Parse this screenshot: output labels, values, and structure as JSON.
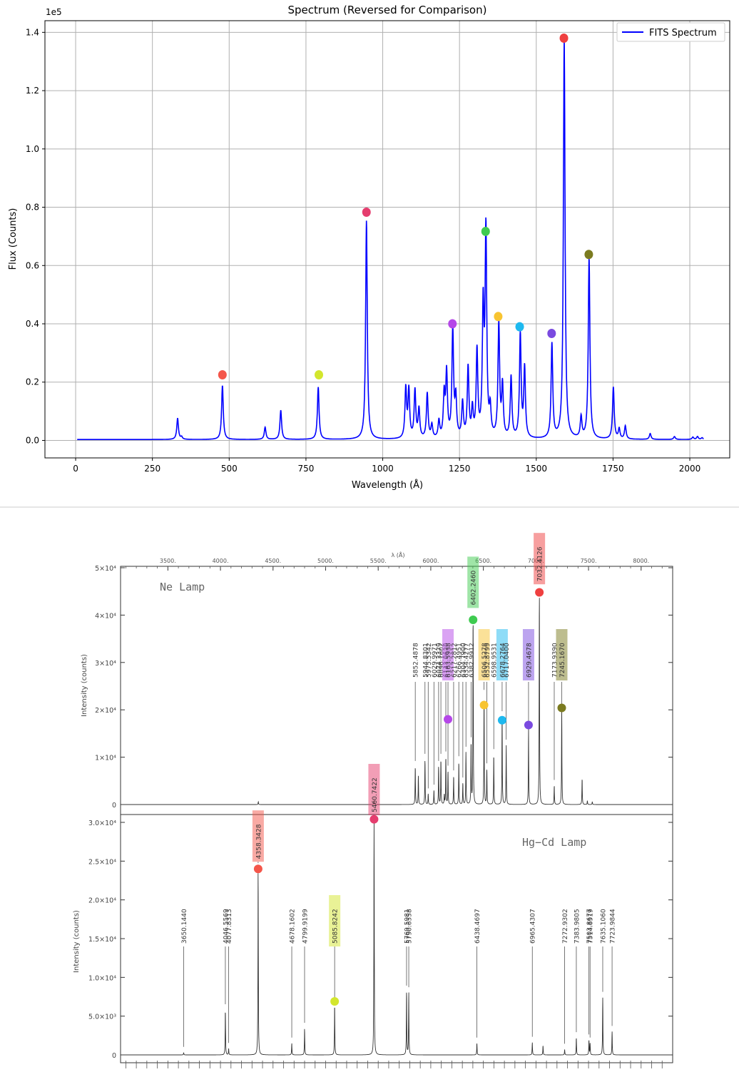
{
  "top_chart": {
    "title": "Spectrum (Reversed for Comparison)",
    "xlabel": "Wavelength (Å)",
    "ylabel": "Flux (Counts)",
    "y_multiplier": "1e5",
    "legend": "FITS Spectrum",
    "line_color": "#0000ff"
  },
  "bottom_chart": {
    "top_axis_title": "λ  (Å)",
    "ne_label": "Ne Lamp",
    "hg_label": "Hg−Cd Lamp",
    "ne_ylabel": "Intensity (counts)",
    "hg_ylabel": "Intensity (counts)"
  },
  "chart_data": [
    {
      "type": "line",
      "title": "Spectrum (Reversed for Comparison)",
      "xlabel": "Wavelength (Å)",
      "ylabel": "Flux (Counts)",
      "xlim": [
        -100,
        2130
      ],
      "ylim": [
        -0.06,
        1.44
      ],
      "y_scale_label": "1e5",
      "xticks": [
        0,
        250,
        500,
        750,
        1000,
        1250,
        1500,
        1750,
        2000
      ],
      "yticks": [
        0.0,
        0.2,
        0.4,
        0.6,
        0.8,
        1.0,
        1.2,
        1.4
      ],
      "ytick_labels": [
        "0.0",
        "0.2",
        "0.4",
        "0.6",
        "0.8",
        "1.0",
        "1.2",
        "1.4"
      ],
      "grid": true,
      "legend": [
        "FITS Spectrum"
      ],
      "legend_position": "top-right",
      "series": [
        {
          "name": "FITS Spectrum",
          "baseline": 0.003,
          "peaks": [
            [
              332,
              0.073
            ],
            [
              345,
              0.008
            ],
            [
              478,
              0.185
            ],
            [
              617,
              0.042
            ],
            [
              668,
              0.1
            ],
            [
              790,
              0.18
            ],
            [
              947,
              0.75
            ],
            [
              1075,
              0.17
            ],
            [
              1085,
              0.165
            ],
            [
              1105,
              0.165
            ],
            [
              1118,
              0.1
            ],
            [
              1145,
              0.155
            ],
            [
              1160,
              0.045
            ],
            [
              1183,
              0.058
            ],
            [
              1200,
              0.145
            ],
            [
              1208,
              0.22
            ],
            [
              1228,
              0.375
            ],
            [
              1238,
              0.13
            ],
            [
              1260,
              0.12
            ],
            [
              1278,
              0.24
            ],
            [
              1292,
              0.095
            ],
            [
              1307,
              0.295
            ],
            [
              1327,
              0.43
            ],
            [
              1336,
              0.7
            ],
            [
              1350,
              0.09
            ],
            [
              1378,
              0.39
            ],
            [
              1390,
              0.175
            ],
            [
              1418,
              0.21
            ],
            [
              1448,
              0.355
            ],
            [
              1462,
              0.24
            ],
            [
              1551,
              0.325
            ],
            [
              1591,
              1.37
            ],
            [
              1646,
              0.072
            ],
            [
              1672,
              0.62
            ],
            [
              1751,
              0.178
            ],
            [
              1770,
              0.035
            ],
            [
              1790,
              0.045
            ],
            [
              1871,
              0.02
            ],
            [
              1950,
              0.01
            ],
            [
              2010,
              0.008
            ],
            [
              2025,
              0.01
            ],
            [
              2040,
              0.006
            ]
          ]
        }
      ],
      "markers": [
        {
          "x": 478,
          "y": 0.225,
          "color": "#f4564a"
        },
        {
          "x": 792,
          "y": 0.225,
          "color": "#d3e62d"
        },
        {
          "x": 947,
          "y": 0.783,
          "color": "#e53d6e"
        },
        {
          "x": 1227,
          "y": 0.4,
          "color": "#b547e8"
        },
        {
          "x": 1335,
          "y": 0.717,
          "color": "#3fcb50"
        },
        {
          "x": 1376,
          "y": 0.425,
          "color": "#f8c431"
        },
        {
          "x": 1446,
          "y": 0.39,
          "color": "#1eb9ef"
        },
        {
          "x": 1550,
          "y": 0.367,
          "color": "#7a4ae0"
        },
        {
          "x": 1590,
          "y": 1.38,
          "color": "#ef4040"
        },
        {
          "x": 1671,
          "y": 0.638,
          "color": "#7b7b20"
        }
      ]
    },
    {
      "type": "line",
      "title": "Ne Lamp",
      "xlabel": "λ  (Å)",
      "ylabel": "Intensity (counts)",
      "xlim": [
        3050,
        8300
      ],
      "ylim": [
        0,
        50000
      ],
      "xticks": [
        3500,
        4000,
        4500,
        5000,
        5500,
        6000,
        6500,
        7000,
        7500,
        8000
      ],
      "xtick_labels": [
        "3500.",
        "4000.",
        "4500.",
        "5000.",
        "5500.",
        "6000.",
        "6500.",
        "7000.",
        "7500.",
        "8000."
      ],
      "yticks": [
        0,
        10000,
        20000,
        30000,
        40000,
        50000
      ],
      "ytick_labels": [
        "0",
        "1×10⁴",
        "2×10⁴",
        "3×10⁴",
        "4×10⁴",
        "5×10⁴"
      ],
      "series": [
        {
          "name": "Ne Lamp",
          "peaks": [
            [
              4360,
              600
            ],
            [
              5460,
              900
            ],
            [
              5852.49,
              8000
            ],
            [
              5881.9,
              6000
            ],
            [
              5944.83,
              9500
            ],
            [
              5975.53,
              2200
            ],
            [
              6029.99,
              3000
            ],
            [
              6074.34,
              8000
            ],
            [
              6096.16,
              9500
            ],
            [
              6128.45,
              2000
            ],
            [
              6143.06,
              10000
            ],
            [
              6163.59,
              7000
            ],
            [
              6217.28,
              6000
            ],
            [
              6266.5,
              9000
            ],
            [
              6304.79,
              4500
            ],
            [
              6334.43,
              11000
            ],
            [
              6382.99,
              13000
            ],
            [
              6402.25,
              40000
            ],
            [
              6506.53,
              23000
            ],
            [
              6532.88,
              7500
            ],
            [
              6598.95,
              10500
            ],
            [
              6678.28,
              18500
            ],
            [
              6717.04,
              12500
            ],
            [
              6929.47,
              16000
            ],
            [
              7032.41,
              45000
            ],
            [
              7173.94,
              4000
            ],
            [
              7245.17,
              20000
            ],
            [
              7438.9,
              5500
            ],
            [
              7488.87,
              800
            ],
            [
              7535.77,
              600
            ]
          ]
        }
      ],
      "line_labels": [
        {
          "label": "5852.4878",
          "x": 5852.49
        },
        {
          "label": "5944.8301",
          "x": 5944.83
        },
        {
          "label": "5975.5342",
          "x": 5975.53
        },
        {
          "label": "6029.9971",
          "x": 6029.99
        },
        {
          "label": "6074.3379",
          "x": 6074.34
        },
        {
          "label": "6096.1602",
          "x": 6096.16
        },
        {
          "label": "6143.0620",
          "x": 6143.06
        },
        {
          "label": "6163.5938",
          "x": 6163.59,
          "highlight": "#b547e8"
        },
        {
          "label": "6217.2812",
          "x": 6217.28
        },
        {
          "label": "6266.4951",
          "x": 6266.5
        },
        {
          "label": "6304.7900",
          "x": 6304.79
        },
        {
          "label": "6334.4277",
          "x": 6334.43
        },
        {
          "label": "6382.9912",
          "x": 6382.99
        },
        {
          "label": "6402.2460",
          "x": 6402.25,
          "highlight": "#3fcb50"
        },
        {
          "label": "6506.5278",
          "x": 6506.53,
          "highlight": "#f8c431"
        },
        {
          "label": "6532.8799",
          "x": 6532.88
        },
        {
          "label": "6598.9531",
          "x": 6598.95
        },
        {
          "label": "6678.2764",
          "x": 6678.28,
          "highlight": "#1eb9ef"
        },
        {
          "label": "6717.0400",
          "x": 6717.04
        },
        {
          "label": "6929.4678",
          "x": 6929.47,
          "highlight": "#7a4ae0"
        },
        {
          "label": "7032.4126",
          "x": 7032.41,
          "highlight": "#ef4040"
        },
        {
          "label": "7173.9390",
          "x": 7173.94
        },
        {
          "label": "7245.1670",
          "x": 7245.17,
          "highlight": "#7b7b20"
        }
      ],
      "markers": [
        {
          "x": 6163.59,
          "y": 18000,
          "color": "#b547e8"
        },
        {
          "x": 6402.25,
          "y": 39000,
          "color": "#3fcb50"
        },
        {
          "x": 6506.53,
          "y": 21000,
          "color": "#f8c431"
        },
        {
          "x": 6678.28,
          "y": 17800,
          "color": "#1eb9ef"
        },
        {
          "x": 6929.47,
          "y": 16800,
          "color": "#7a4ae0"
        },
        {
          "x": 7032.41,
          "y": 44800,
          "color": "#ef4040"
        },
        {
          "x": 7245.17,
          "y": 20400,
          "color": "#7b7b20"
        }
      ]
    },
    {
      "type": "line",
      "title": "Hg−Cd Lamp",
      "xlabel": "λ  (Å)",
      "ylabel": "Intensity (counts)",
      "xlim": [
        3050,
        8300
      ],
      "ylim": [
        0,
        31000
      ],
      "yticks": [
        0,
        5000,
        10000,
        15000,
        20000,
        25000,
        30000
      ],
      "ytick_labels": [
        "0",
        "5.0×10³",
        "1.0×10⁴",
        "1.5×10⁴",
        "2.0×10⁴",
        "2.5×10⁴",
        "3.0×10⁴"
      ],
      "series": [
        {
          "name": "Hg-Cd Lamp",
          "peaks": [
            [
              3650.14,
              300
            ],
            [
              4046.56,
              5800
            ],
            [
              4077.83,
              800
            ],
            [
              4358.34,
              24000
            ],
            [
              4678.16,
              1500
            ],
            [
              4799.92,
              3400
            ],
            [
              5085.82,
              6500
            ],
            [
              5460.74,
              30000
            ],
            [
              5769.6,
              8200
            ],
            [
              5790.66,
              8000
            ],
            [
              6438.47,
              1500
            ],
            [
              6965.43,
              1600
            ],
            [
              7067.2,
              1200
            ],
            [
              7272.93,
              700
            ],
            [
              7383.98,
              2200
            ],
            [
              7503.87,
              1900
            ],
            [
              7514.65,
              1500
            ],
            [
              7635.11,
              7400
            ],
            [
              7723.98,
              3000
            ]
          ]
        }
      ],
      "line_labels": [
        {
          "label": "3650.1440",
          "x": 3650.14
        },
        {
          "label": "4046.5569",
          "x": 4046.56
        },
        {
          "label": "4077.8313",
          "x": 4077.83
        },
        {
          "label": "4358.3428",
          "x": 4358.34,
          "highlight": "#f4564a"
        },
        {
          "label": "4678.1602",
          "x": 4678.16
        },
        {
          "label": "4799.9199",
          "x": 4799.92
        },
        {
          "label": "5085.8242",
          "x": 5085.82,
          "highlight": "#d3e62d"
        },
        {
          "label": "5460.7422",
          "x": 5460.74,
          "highlight": "#e53d6e"
        },
        {
          "label": "5769.5981",
          "x": 5769.6
        },
        {
          "label": "5790.6558",
          "x": 5790.66
        },
        {
          "label": "6438.4697",
          "x": 6438.47
        },
        {
          "label": "6965.4307",
          "x": 6965.43
        },
        {
          "label": "7272.9302",
          "x": 7272.93
        },
        {
          "label": "7383.9805",
          "x": 7383.98
        },
        {
          "label": "7503.8677",
          "x": 7503.87
        },
        {
          "label": "7514.6519",
          "x": 7514.65
        },
        {
          "label": "7635.1060",
          "x": 7635.11
        },
        {
          "label": "7723.9844",
          "x": 7723.98
        }
      ],
      "markers": [
        {
          "x": 4358.34,
          "y": 24000,
          "color": "#f4564a"
        },
        {
          "x": 5085.82,
          "y": 6900,
          "color": "#d3e62d"
        },
        {
          "x": 5460.74,
          "y": 30400,
          "color": "#e53d6e"
        }
      ]
    }
  ]
}
